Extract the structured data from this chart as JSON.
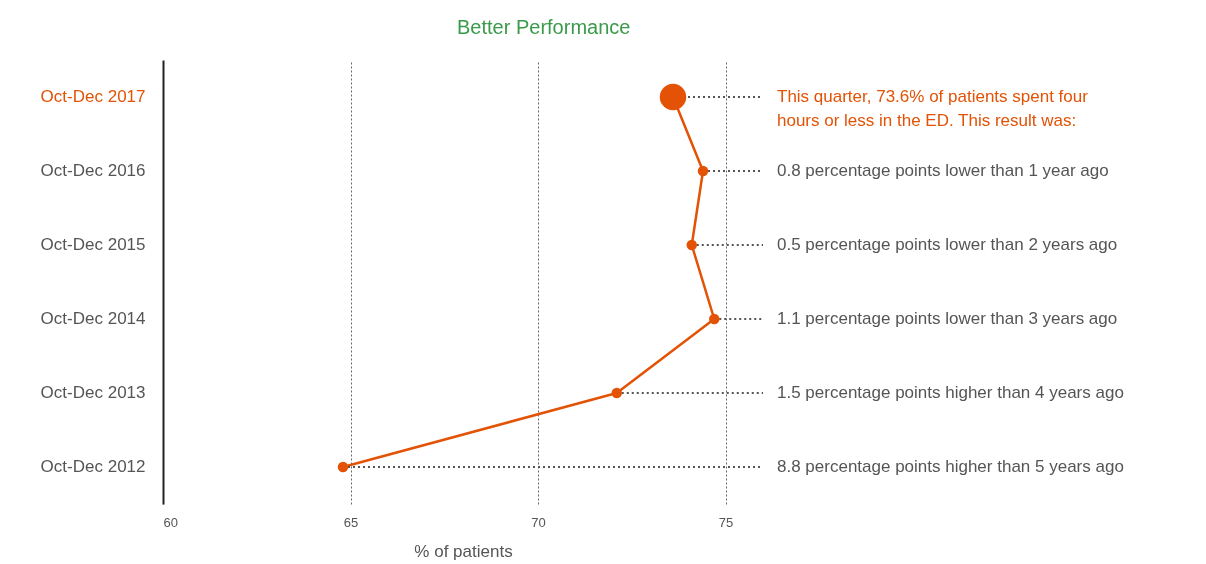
{
  "chart_data": {
    "type": "line",
    "orientation": "horizontal",
    "xlabel": "% of patients",
    "categories": [
      "Oct-Dec 2017",
      "Oct-Dec 2016",
      "Oct-Dec 2015",
      "Oct-Dec 2014",
      "Oct-Dec 2013",
      "Oct-Dec 2012"
    ],
    "series": [
      {
        "color": "#e35205",
        "values": [
          73.6,
          74.4,
          74.1,
          74.7,
          72.1,
          64.8
        ]
      }
    ],
    "xlim": [
      60,
      76
    ],
    "xticks": [
      60,
      65,
      70,
      75
    ],
    "grid": "x",
    "marker": "circle",
    "annotations": [
      "Better Performance",
      {
        "text": "This quarter, 73.6% of patients spent four hours or less in the ED. This result was:",
        "x": 73.6,
        "y": "Oct-Dec 2017"
      },
      {
        "text": "0.8 percentage points lower than 1 year ago",
        "x": 74.4,
        "y": "Oct-Dec 2016"
      },
      {
        "text": "0.5 percentage points lower than 2 years ago",
        "x": 74.1,
        "y": "Oct-Dec 2015"
      },
      {
        "text": "1.1 percentage points lower than 3 years ago",
        "x": 74.7,
        "y": "Oct-Dec 2014"
      },
      {
        "text": "1.5 percentage points higher than 4 years ago",
        "x": 72.1,
        "y": "Oct-Dec 2013"
      },
      {
        "text": "8.8 percentage points higher than 5 years ago",
        "x": 64.8,
        "y": "Oct-Dec 2012"
      }
    ]
  }
}
